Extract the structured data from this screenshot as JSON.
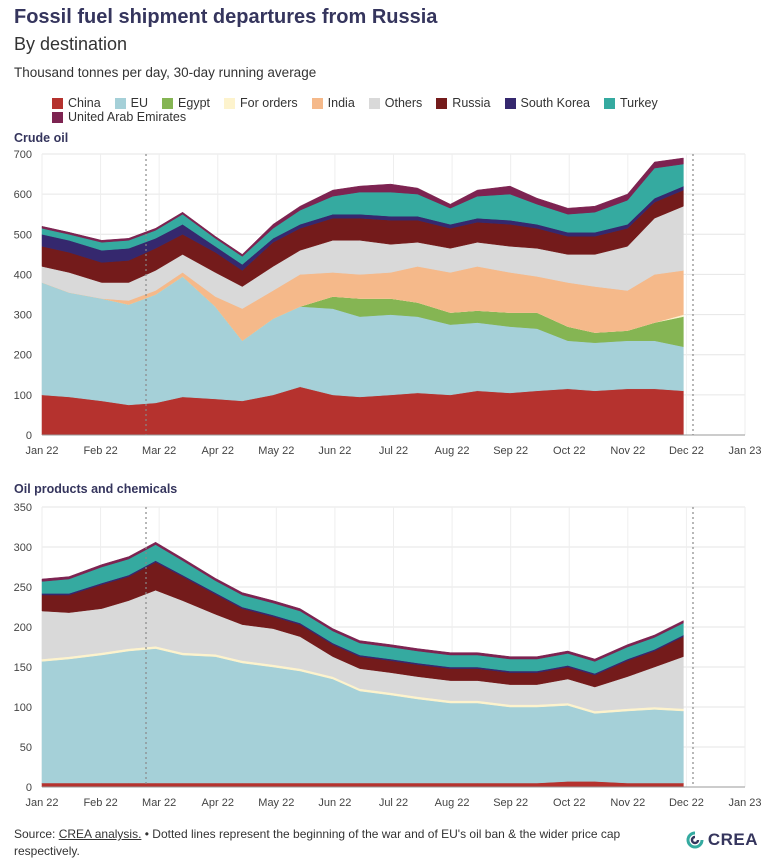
{
  "header": {
    "title": "Fossil fuel shipment departures from Russia",
    "subtitle": "By destination",
    "units": "Thousand tonnes per day, 30-day running average"
  },
  "legend": [
    {
      "name": "China",
      "color": "#b5322e"
    },
    {
      "name": "EU",
      "color": "#a5d0d8"
    },
    {
      "name": "Egypt",
      "color": "#85b553"
    },
    {
      "name": "For orders",
      "color": "#fdf3cd"
    },
    {
      "name": "India",
      "color": "#f5b98a"
    },
    {
      "name": "Others",
      "color": "#d9d9d9"
    },
    {
      "name": "Russia",
      "color": "#741b1b"
    },
    {
      "name": "South Korea",
      "color": "#35286e"
    },
    {
      "name": "Turkey",
      "color": "#35aaa0"
    },
    {
      "name": "United Arab Emirates",
      "color": "#7d2351"
    }
  ],
  "panels": {
    "crude": {
      "title": "Crude oil"
    },
    "products": {
      "title": "Oil products and chemicals"
    }
  },
  "source": {
    "prefix": "Source: ",
    "link": "CREA analysis.",
    "note": " • Dotted lines represent the beginning of the war and of EU's oil ban & the wider price cap respectively."
  },
  "logo": {
    "text": "CREA"
  },
  "chart_data": [
    {
      "type": "area",
      "stacked": true,
      "title": "Crude oil",
      "ylim": [
        0,
        700
      ],
      "yticks": [
        0,
        100,
        200,
        300,
        400,
        500,
        600,
        700
      ],
      "x_range": [
        "2022-01-01",
        "2023-01-01"
      ],
      "x_ticks": [
        "Jan 22",
        "Feb 22",
        "Mar 22",
        "Apr 22",
        "May 22",
        "Jun 22",
        "Jul 22",
        "Aug 22",
        "Sep 22",
        "Oct 22",
        "Nov 22",
        "Dec 22",
        "Jan 23"
      ],
      "reference_lines": [
        "2022-02-24",
        "2022-12-05"
      ],
      "grid": true,
      "x": [
        "2022-01-01",
        "2022-01-15",
        "2022-02-01",
        "2022-02-15",
        "2022-03-01",
        "2022-03-15",
        "2022-04-01",
        "2022-04-15",
        "2022-05-01",
        "2022-05-15",
        "2022-06-01",
        "2022-06-15",
        "2022-07-01",
        "2022-07-15",
        "2022-08-01",
        "2022-08-15",
        "2022-09-01",
        "2022-09-15",
        "2022-10-01",
        "2022-10-15",
        "2022-11-01",
        "2022-11-15",
        "2022-11-30"
      ],
      "series": [
        {
          "name": "China",
          "values": [
            100,
            95,
            85,
            75,
            80,
            95,
            90,
            85,
            100,
            120,
            100,
            95,
            100,
            105,
            100,
            110,
            105,
            110,
            115,
            110,
            115,
            115,
            110
          ]
        },
        {
          "name": "EU",
          "values": [
            280,
            260,
            255,
            250,
            270,
            300,
            230,
            150,
            190,
            200,
            215,
            200,
            200,
            190,
            175,
            170,
            165,
            155,
            120,
            120,
            120,
            120,
            110
          ]
        },
        {
          "name": "Egypt",
          "values": [
            0,
            0,
            0,
            0,
            0,
            0,
            0,
            0,
            0,
            0,
            30,
            45,
            40,
            35,
            30,
            30,
            35,
            40,
            35,
            25,
            25,
            45,
            75
          ]
        },
        {
          "name": "For orders",
          "values": [
            0,
            0,
            0,
            0,
            0,
            0,
            0,
            0,
            0,
            0,
            0,
            0,
            0,
            0,
            0,
            0,
            0,
            0,
            0,
            0,
            0,
            0,
            5
          ]
        },
        {
          "name": "India",
          "values": [
            0,
            0,
            0,
            10,
            10,
            10,
            25,
            80,
            70,
            80,
            60,
            60,
            65,
            90,
            100,
            110,
            100,
            90,
            110,
            115,
            100,
            120,
            110
          ]
        },
        {
          "name": "Others",
          "values": [
            40,
            50,
            40,
            45,
            50,
            45,
            60,
            55,
            60,
            60,
            80,
            85,
            70,
            60,
            60,
            60,
            65,
            70,
            70,
            80,
            110,
            140,
            160
          ]
        },
        {
          "name": "Russia",
          "values": [
            50,
            50,
            50,
            55,
            55,
            50,
            50,
            40,
            60,
            55,
            55,
            55,
            60,
            55,
            50,
            50,
            55,
            50,
            45,
            45,
            45,
            40,
            40
          ]
        },
        {
          "name": "South Korea",
          "values": [
            30,
            30,
            30,
            30,
            25,
            25,
            15,
            15,
            10,
            10,
            10,
            10,
            10,
            10,
            10,
            10,
            10,
            10,
            10,
            10,
            10,
            10,
            10
          ]
        },
        {
          "name": "Turkey",
          "values": [
            15,
            15,
            20,
            20,
            20,
            25,
            20,
            20,
            25,
            35,
            45,
            55,
            60,
            55,
            40,
            55,
            65,
            50,
            45,
            50,
            60,
            75,
            55
          ]
        },
        {
          "name": "United Arab Emirates",
          "values": [
            5,
            5,
            5,
            5,
            5,
            5,
            5,
            5,
            10,
            10,
            15,
            15,
            20,
            15,
            10,
            15,
            20,
            15,
            15,
            15,
            15,
            15,
            15
          ]
        }
      ]
    },
    {
      "type": "area",
      "stacked": true,
      "title": "Oil products and chemicals",
      "ylim": [
        0,
        350
      ],
      "yticks": [
        0,
        50,
        100,
        150,
        200,
        250,
        300,
        350
      ],
      "x_range": [
        "2022-01-01",
        "2023-01-01"
      ],
      "x_ticks": [
        "Jan 22",
        "Feb 22",
        "Mar 22",
        "Apr 22",
        "May 22",
        "Jun 22",
        "Jul 22",
        "Aug 22",
        "Sep 22",
        "Oct 22",
        "Nov 22",
        "Dec 22",
        "Jan 23"
      ],
      "reference_lines": [
        "2022-02-24",
        "2022-12-05"
      ],
      "grid": true,
      "x": [
        "2022-01-01",
        "2022-01-15",
        "2022-02-01",
        "2022-02-15",
        "2022-03-01",
        "2022-03-15",
        "2022-04-01",
        "2022-04-15",
        "2022-05-01",
        "2022-05-15",
        "2022-06-01",
        "2022-06-15",
        "2022-07-01",
        "2022-07-15",
        "2022-08-01",
        "2022-08-15",
        "2022-09-01",
        "2022-09-15",
        "2022-10-01",
        "2022-10-15",
        "2022-11-01",
        "2022-11-15",
        "2022-11-30"
      ],
      "series": [
        {
          "name": "China",
          "values": [
            5,
            5,
            5,
            5,
            5,
            5,
            5,
            5,
            5,
            5,
            5,
            5,
            5,
            5,
            5,
            5,
            5,
            5,
            7,
            7,
            5,
            5,
            5
          ]
        },
        {
          "name": "EU",
          "values": [
            152,
            155,
            160,
            165,
            168,
            160,
            158,
            150,
            145,
            140,
            130,
            115,
            110,
            105,
            100,
            100,
            95,
            95,
            95,
            85,
            90,
            92,
            90
          ]
        },
        {
          "name": "Egypt",
          "values": [
            0,
            0,
            0,
            0,
            0,
            0,
            0,
            0,
            0,
            0,
            0,
            0,
            0,
            0,
            0,
            0,
            0,
            0,
            0,
            0,
            0,
            0,
            0
          ]
        },
        {
          "name": "For orders",
          "values": [
            3,
            3,
            3,
            3,
            3,
            3,
            3,
            3,
            3,
            3,
            3,
            3,
            3,
            3,
            3,
            3,
            3,
            3,
            3,
            3,
            3,
            3,
            3
          ]
        },
        {
          "name": "India",
          "values": [
            0,
            0,
            0,
            0,
            0,
            0,
            0,
            0,
            0,
            0,
            0,
            0,
            0,
            0,
            0,
            0,
            0,
            0,
            0,
            0,
            0,
            0,
            0
          ]
        },
        {
          "name": "Others",
          "values": [
            60,
            55,
            55,
            60,
            70,
            65,
            50,
            45,
            45,
            40,
            25,
            25,
            25,
            25,
            25,
            25,
            25,
            25,
            30,
            30,
            40,
            50,
            65
          ]
        },
        {
          "name": "Russia",
          "values": [
            20,
            22,
            30,
            30,
            35,
            30,
            25,
            20,
            15,
            15,
            15,
            15,
            15,
            15,
            15,
            15,
            15,
            15,
            15,
            15,
            20,
            20,
            25
          ]
        },
        {
          "name": "South Korea",
          "values": [
            2,
            2,
            2,
            2,
            2,
            2,
            2,
            2,
            2,
            2,
            2,
            2,
            2,
            2,
            2,
            2,
            2,
            2,
            2,
            2,
            2,
            2,
            2
          ]
        },
        {
          "name": "Turkey",
          "values": [
            15,
            18,
            20,
            20,
            20,
            18,
            15,
            15,
            15,
            15,
            15,
            15,
            15,
            15,
            15,
            15,
            15,
            15,
            15,
            15,
            15,
            15,
            15
          ]
        },
        {
          "name": "United Arab Emirates",
          "values": [
            3,
            3,
            3,
            3,
            3,
            3,
            3,
            3,
            3,
            3,
            3,
            3,
            3,
            3,
            3,
            3,
            3,
            3,
            3,
            3,
            3,
            3,
            3
          ]
        }
      ]
    }
  ]
}
